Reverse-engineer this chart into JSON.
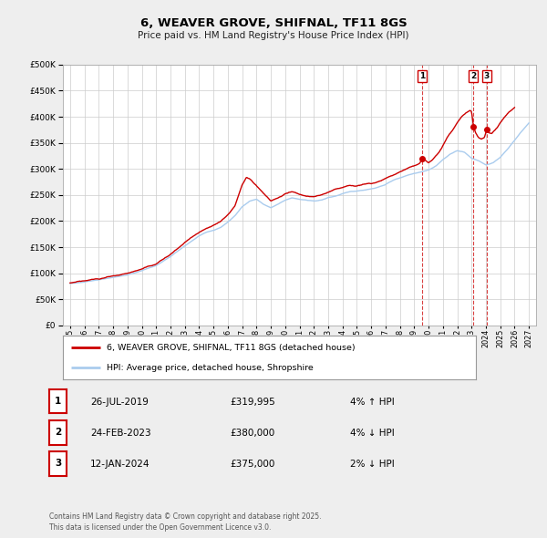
{
  "title": "6, WEAVER GROVE, SHIFNAL, TF11 8GS",
  "subtitle": "Price paid vs. HM Land Registry's House Price Index (HPI)",
  "ylim": [
    0,
    500000
  ],
  "yticks": [
    0,
    50000,
    100000,
    150000,
    200000,
    250000,
    300000,
    350000,
    400000,
    450000,
    500000
  ],
  "ytick_labels": [
    "£0",
    "£50K",
    "£100K",
    "£150K",
    "£200K",
    "£250K",
    "£300K",
    "£350K",
    "£400K",
    "£450K",
    "£500K"
  ],
  "xlim_start": 1994.5,
  "xlim_end": 2027.5,
  "background_color": "#eeeeee",
  "plot_bg_color": "#ffffff",
  "grid_color": "#cccccc",
  "hpi_color": "#aaccee",
  "price_color": "#cc0000",
  "legend_label_price": "6, WEAVER GROVE, SHIFNAL, TF11 8GS (detached house)",
  "legend_label_hpi": "HPI: Average price, detached house, Shropshire",
  "sale_points": [
    {
      "x_year": 2019.57,
      "y_val": 319995,
      "label": "1"
    },
    {
      "x_year": 2023.14,
      "y_val": 380000,
      "label": "2"
    },
    {
      "x_year": 2024.04,
      "y_val": 375000,
      "label": "3"
    }
  ],
  "table_rows": [
    {
      "num": "1",
      "date": "26-JUL-2019",
      "price": "£319,995",
      "hpi": "4% ↑ HPI"
    },
    {
      "num": "2",
      "date": "24-FEB-2023",
      "price": "£380,000",
      "hpi": "4% ↓ HPI"
    },
    {
      "num": "3",
      "date": "12-JAN-2024",
      "price": "£375,000",
      "hpi": "2% ↓ HPI"
    }
  ],
  "footer": "Contains HM Land Registry data © Crown copyright and database right 2025.\nThis data is licensed under the Open Government Licence v3.0."
}
